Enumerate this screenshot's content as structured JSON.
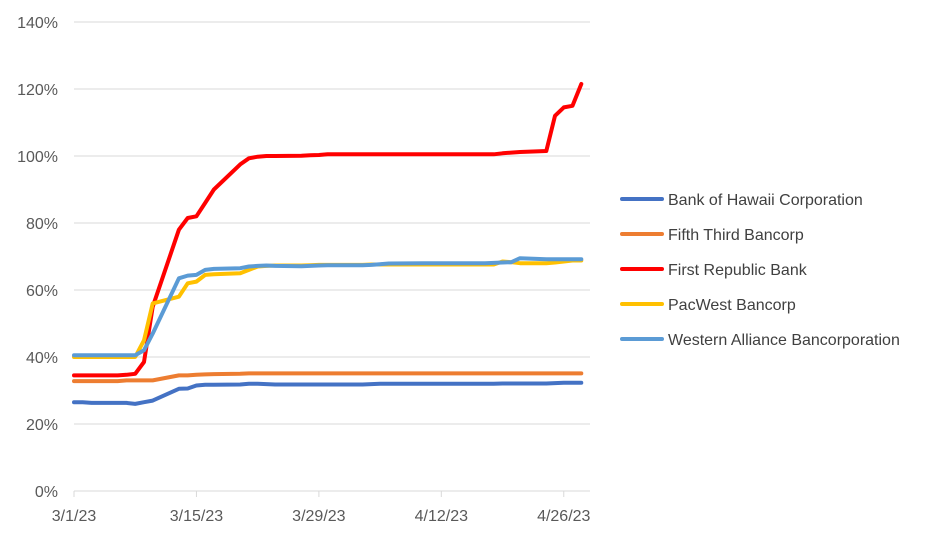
{
  "chart_data": {
    "type": "line",
    "title": "",
    "xlabel": "",
    "ylabel": "",
    "x_start": "3/1/23",
    "x_ticks": [
      "3/1/23",
      "3/15/23",
      "3/29/23",
      "4/12/23",
      "4/26/23"
    ],
    "y_ticks": [
      "0%",
      "20%",
      "40%",
      "60%",
      "80%",
      "100%",
      "120%",
      "140%"
    ],
    "ylim": [
      0,
      140
    ],
    "y_unit": "%",
    "grid": "horizontal",
    "legend_position": "right",
    "x": [
      "2023-03-01",
      "2023-03-02",
      "2023-03-03",
      "2023-03-06",
      "2023-03-07",
      "2023-03-08",
      "2023-03-09",
      "2023-03-10",
      "2023-03-13",
      "2023-03-14",
      "2023-03-15",
      "2023-03-16",
      "2023-03-17",
      "2023-03-20",
      "2023-03-21",
      "2023-03-22",
      "2023-03-23",
      "2023-03-24",
      "2023-03-27",
      "2023-03-28",
      "2023-03-29",
      "2023-03-30",
      "2023-03-31",
      "2023-04-03",
      "2023-04-04",
      "2023-04-05",
      "2023-04-06",
      "2023-04-10",
      "2023-04-11",
      "2023-04-12",
      "2023-04-13",
      "2023-04-14",
      "2023-04-17",
      "2023-04-18",
      "2023-04-19",
      "2023-04-20",
      "2023-04-21",
      "2023-04-24",
      "2023-04-25",
      "2023-04-26",
      "2023-04-27",
      "2023-04-28"
    ],
    "series": [
      {
        "name": "Bank of Hawaii Corporation",
        "color": "#4472C4",
        "values": [
          26.5,
          26.5,
          26.3,
          26.3,
          26.3,
          26.0,
          26.5,
          27.0,
          30.5,
          30.6,
          31.5,
          31.7,
          31.7,
          31.8,
          32.0,
          32.0,
          31.9,
          31.8,
          31.8,
          31.8,
          31.8,
          31.8,
          31.8,
          31.8,
          31.9,
          32.0,
          32.0,
          32.0,
          32.0,
          32.0,
          32.0,
          32.0,
          32.0,
          32.0,
          32.1,
          32.1,
          32.1,
          32.1,
          32.2,
          32.3,
          32.3,
          32.3
        ]
      },
      {
        "name": "Fifth Third Bancorp",
        "color": "#ED7D31",
        "values": [
          32.8,
          32.8,
          32.8,
          32.8,
          33.0,
          33.0,
          33.0,
          33.0,
          34.5,
          34.5,
          34.7,
          34.8,
          34.9,
          35.0,
          35.1,
          35.1,
          35.1,
          35.1,
          35.1,
          35.1,
          35.1,
          35.1,
          35.1,
          35.1,
          35.1,
          35.1,
          35.1,
          35.1,
          35.1,
          35.1,
          35.1,
          35.1,
          35.1,
          35.1,
          35.1,
          35.1,
          35.1,
          35.1,
          35.1,
          35.1,
          35.1,
          35.1
        ]
      },
      {
        "name": "First Republic Bank",
        "color": "#FF0000",
        "values": [
          34.5,
          34.5,
          34.5,
          34.5,
          34.7,
          35.0,
          38.5,
          55.0,
          78.0,
          81.5,
          82.0,
          86.0,
          90.0,
          97.5,
          99.3,
          99.8,
          100.0,
          100.0,
          100.1,
          100.2,
          100.3,
          100.5,
          100.5,
          100.5,
          100.5,
          100.5,
          100.5,
          100.5,
          100.5,
          100.5,
          100.5,
          100.5,
          100.5,
          100.5,
          100.8,
          101.0,
          101.2,
          101.5,
          112.0,
          114.5,
          115.0,
          121.5
        ]
      },
      {
        "name": "PacWest Bancorp",
        "color": "#FFC000",
        "values": [
          40.0,
          40.0,
          40.0,
          40.0,
          40.0,
          40.0,
          45.0,
          56.0,
          58.0,
          62.0,
          62.5,
          64.5,
          64.7,
          65.0,
          66.0,
          67.0,
          67.2,
          67.3,
          67.3,
          67.4,
          67.5,
          67.5,
          67.5,
          67.5,
          67.6,
          67.6,
          67.6,
          67.6,
          67.6,
          67.6,
          67.6,
          67.6,
          67.6,
          67.6,
          68.5,
          68.3,
          68.0,
          68.0,
          68.2,
          68.5,
          68.8,
          68.8
        ]
      },
      {
        "name": "Western Alliance Bancorporation",
        "color": "#5B9BD5",
        "values": [
          40.5,
          40.5,
          40.5,
          40.5,
          40.5,
          40.5,
          42.0,
          47.0,
          63.5,
          64.3,
          64.5,
          66.0,
          66.3,
          66.5,
          67.0,
          67.2,
          67.3,
          67.2,
          67.1,
          67.2,
          67.3,
          67.4,
          67.4,
          67.4,
          67.5,
          67.7,
          67.9,
          68.0,
          68.0,
          68.0,
          68.0,
          68.0,
          68.0,
          68.1,
          68.2,
          68.3,
          69.5,
          69.2,
          69.2,
          69.2,
          69.2,
          69.2
        ]
      }
    ]
  }
}
